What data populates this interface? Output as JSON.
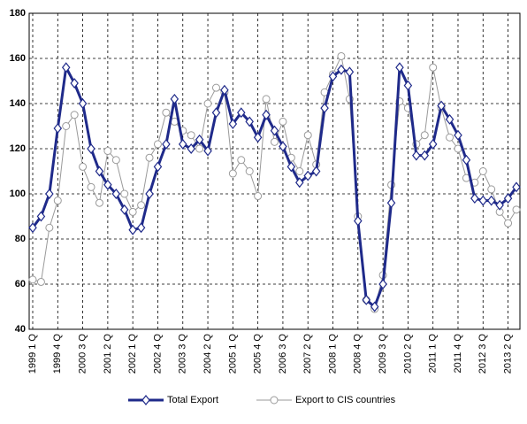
{
  "chart_data": {
    "type": "line",
    "categories": [
      "1999 1 Q",
      null,
      null,
      "1999 4 Q",
      null,
      null,
      "2000 3 Q",
      null,
      null,
      "2001 2 Q",
      null,
      null,
      "2002 1 Q",
      null,
      null,
      "2002 4 Q",
      null,
      null,
      "2003 3 Q",
      null,
      null,
      "2004 2 Q",
      null,
      null,
      "2005 1 Q",
      null,
      null,
      "2005 4 Q",
      null,
      null,
      "2006 3 Q",
      null,
      null,
      "2007 2 Q",
      null,
      null,
      "2008 1 Q",
      null,
      null,
      "2008 4 Q",
      null,
      null,
      "2009 3 Q",
      null,
      null,
      "2010 2 Q",
      null,
      null,
      "2011 1 Q",
      null,
      null,
      "2011 4 Q",
      null,
      null,
      "2012 3 Q",
      null,
      null,
      "2013 2 Q",
      null
    ],
    "series": [
      {
        "name": "Total Export",
        "color": "#1f2a8a",
        "marker": "diamond",
        "values": [
          85,
          90,
          100,
          129,
          156,
          149,
          140,
          120,
          110,
          104,
          100,
          93,
          84,
          85,
          100,
          112,
          122,
          142,
          122,
          120,
          124,
          119,
          136,
          146,
          131,
          136,
          132,
          125,
          135,
          128,
          121,
          112,
          105,
          108,
          110,
          138,
          152,
          155,
          154,
          88,
          53,
          50,
          60,
          96,
          156,
          148,
          117,
          117,
          122,
          139,
          133,
          126,
          115,
          98,
          97,
          97,
          95,
          98,
          103
        ]
      },
      {
        "name": "Export to CIS countries",
        "color": "#9a9a9a",
        "marker": "circle",
        "values": [
          62,
          61,
          85,
          97,
          130,
          135,
          112,
          103,
          96,
          119,
          115,
          100,
          92,
          95,
          116,
          122,
          136,
          132,
          128,
          126,
          120,
          140,
          147,
          145,
          109,
          115,
          110,
          99,
          142,
          123,
          132,
          116,
          110,
          126,
          113,
          145,
          153,
          161,
          142,
          90,
          53,
          49,
          64,
          104,
          141,
          138,
          122,
          126,
          156,
          138,
          125,
          120,
          107,
          105,
          110,
          102,
          92,
          87,
          93
        ]
      }
    ],
    "ylim": [
      40,
      180
    ],
    "yticks": [
      40,
      60,
      80,
      100,
      120,
      140,
      160,
      180
    ],
    "grid": true,
    "legend": "bottom"
  }
}
